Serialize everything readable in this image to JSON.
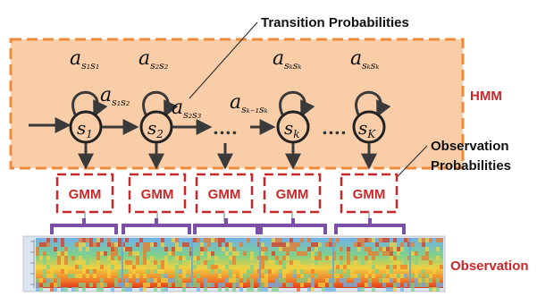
{
  "labels": {
    "transition": "Transition Probabilities",
    "hmm": "HMM",
    "observation_prob_line1": "Observation",
    "observation_prob_line2": "Probabilities",
    "observation": "Observation",
    "ellipsis": "....",
    "gmm": "GMM"
  },
  "states": [
    {
      "base": "s",
      "sub": "1"
    },
    {
      "base": "s",
      "sub": "2"
    },
    {
      "base": "s",
      "sub": "k"
    },
    {
      "base": "s",
      "sub": "K"
    }
  ],
  "self_transitions": [
    {
      "base": "a",
      "sub": "s₁s₁"
    },
    {
      "base": "a",
      "sub": "s₂s₂"
    },
    {
      "base": "a",
      "sub": "sₖsₖ"
    },
    {
      "base": "a",
      "sub": "sₖsₖ"
    }
  ],
  "forward_transitions": [
    {
      "base": "a",
      "sub": "s₁s₂"
    },
    {
      "base": "a",
      "sub": "s₂s₃"
    },
    {
      "base": "a",
      "sub": "sₖ₋₁sₖ"
    }
  ],
  "colors": {
    "hmm_fill": "#f9cda8",
    "hmm_border": "#f08a3c",
    "gmm_red": "#c9282a",
    "bracket": "#7b4fa8",
    "arrow": "#3a3a3a"
  },
  "icons": [
    "spectrogram-image"
  ]
}
